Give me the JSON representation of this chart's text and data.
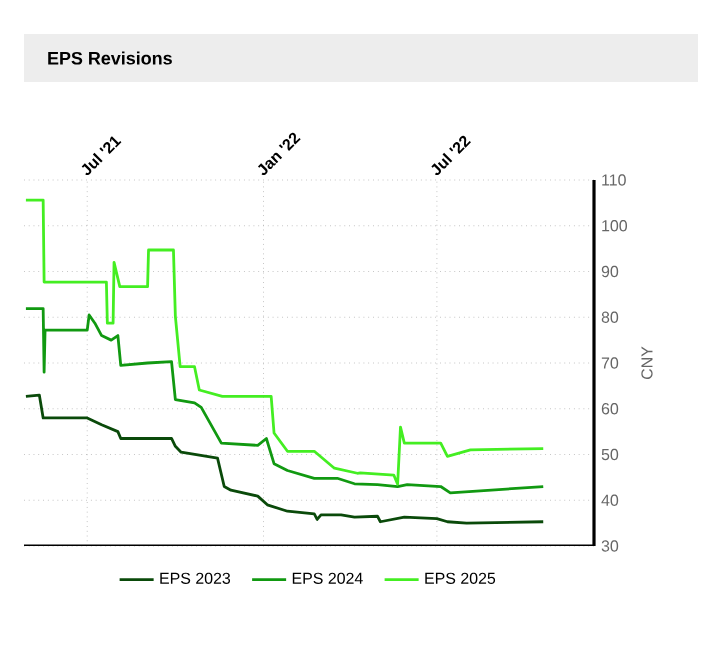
{
  "chart_data": {
    "type": "line",
    "title": "EPS Revisions",
    "ylabel": "CNY",
    "xlim": [
      "2021-04-26",
      "2022-12-12"
    ],
    "ylim": [
      30,
      110
    ],
    "xticks": [
      {
        "value": "2021-07-01",
        "label": "Jul '21"
      },
      {
        "value": "2022-01-01",
        "label": "Jan '22"
      },
      {
        "value": "2022-07-01",
        "label": "Jul '22"
      }
    ],
    "yticks": [
      30,
      40,
      50,
      60,
      70,
      80,
      90,
      100,
      110
    ],
    "grid": true,
    "legend": "bottom",
    "line_style": "solid",
    "series": [
      {
        "name": "EPS 2023",
        "color": "#0a4a0a",
        "x": [
          "2021-04-28",
          "2021-05-12",
          "2021-05-16",
          "2021-07-01",
          "2021-07-16",
          "2021-08-02",
          "2021-08-05",
          "2021-09-27",
          "2021-10-01",
          "2021-10-07",
          "2021-11-14",
          "2021-11-21",
          "2021-11-28",
          "2021-12-26",
          "2022-01-05",
          "2022-01-26",
          "2022-02-23",
          "2022-02-26",
          "2022-03-02",
          "2022-03-23",
          "2022-04-06",
          "2022-04-30",
          "2022-05-03",
          "2022-05-28",
          "2022-07-01",
          "2022-07-12",
          "2022-08-01",
          "2022-10-20"
        ],
        "values": [
          62.7,
          63,
          58,
          58,
          56.5,
          55,
          53.5,
          53.5,
          51.8,
          50.5,
          49.2,
          43,
          42.2,
          40.9,
          39,
          37.6,
          37,
          35.8,
          36.8,
          36.8,
          36.3,
          36.5,
          35.3,
          36.3,
          36,
          35.3,
          35,
          35.3
        ]
      },
      {
        "name": "EPS 2024",
        "color": "#119911",
        "x": [
          "2021-04-28",
          "2021-05-16",
          "2021-05-17",
          "2021-05-18",
          "2021-07-01",
          "2021-07-03",
          "2021-07-09",
          "2021-07-16",
          "2021-07-26",
          "2021-08-02",
          "2021-08-05",
          "2021-09-02",
          "2021-09-27",
          "2021-10-01",
          "2021-10-21",
          "2021-10-28",
          "2021-11-18",
          "2021-12-26",
          "2022-01-04",
          "2022-01-12",
          "2022-01-26",
          "2022-02-23",
          "2022-03-19",
          "2022-04-06",
          "2022-04-30",
          "2022-05-21",
          "2022-05-31",
          "2022-07-05",
          "2022-07-15",
          "2022-10-20"
        ],
        "values": [
          81.9,
          81.9,
          68,
          77.2,
          77.2,
          80.5,
          78.7,
          76,
          75,
          76,
          69.5,
          70,
          70.3,
          62,
          61.3,
          60.3,
          52.5,
          52,
          53.5,
          48,
          46.5,
          44.8,
          44.8,
          43.6,
          43.4,
          43,
          43.4,
          43,
          41.6,
          43
        ]
      },
      {
        "name": "EPS 2025",
        "color": "#44ee22",
        "x": [
          "2021-04-28",
          "2021-05-16",
          "2021-05-17",
          "2021-07-21",
          "2021-07-22",
          "2021-07-28",
          "2021-07-29",
          "2021-08-04",
          "2021-09-02",
          "2021-09-03",
          "2021-09-29",
          "2021-10-01",
          "2021-10-06",
          "2021-10-21",
          "2021-10-26",
          "2021-11-19",
          "2022-01-09",
          "2022-01-12",
          "2022-01-26",
          "2022-02-23",
          "2022-03-16",
          "2022-04-09",
          "2022-04-12",
          "2022-05-17",
          "2022-05-21",
          "2022-05-24",
          "2022-05-28",
          "2022-07-05",
          "2022-07-12",
          "2022-08-05",
          "2022-10-20"
        ],
        "values": [
          105.6,
          105.6,
          87.7,
          87.7,
          78.7,
          78.7,
          92,
          86.7,
          86.7,
          94.7,
          94.7,
          80.2,
          69.2,
          69.2,
          64.1,
          62.7,
          62.7,
          54.7,
          50.7,
          50.7,
          47,
          45.9,
          46,
          45.5,
          43.5,
          56,
          52.5,
          52.5,
          49.6,
          51,
          51.3
        ]
      }
    ]
  }
}
